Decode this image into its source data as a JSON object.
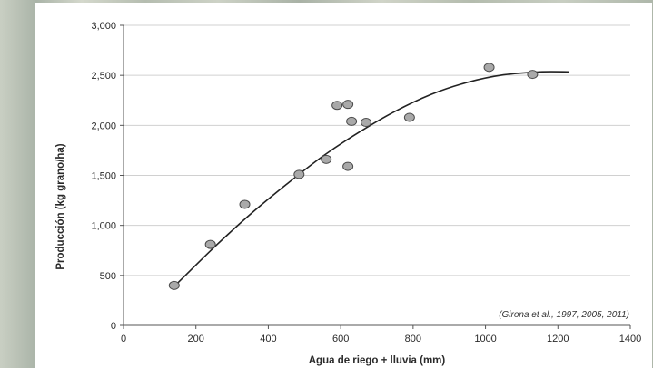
{
  "chart_data": {
    "type": "scatter",
    "title": "",
    "xlabel": "Agua de riego + lluvia (mm)",
    "ylabel": "Producción (kg grano/ha)",
    "xlim": [
      0,
      1400
    ],
    "ylim": [
      0,
      3000
    ],
    "x_ticks": [
      0,
      200,
      400,
      600,
      800,
      1000,
      1200,
      1400
    ],
    "x_tick_labels": [
      "0",
      "200",
      "400",
      "600",
      "800",
      "1000",
      "1200",
      "1400"
    ],
    "y_ticks": [
      0,
      500,
      1000,
      1500,
      2000,
      2500,
      3000
    ],
    "y_tick_labels": [
      "0",
      "500",
      "1,000",
      "1,500",
      "2,000",
      "2,500",
      "3,000"
    ],
    "grid": "horizontal",
    "annotation": "(Girona et al., 1997, 2005, 2011)",
    "series": [
      {
        "values": [
          {
            "x": 140,
            "y": 400
          },
          {
            "x": 240,
            "y": 810
          },
          {
            "x": 335,
            "y": 1210
          },
          {
            "x": 485,
            "y": 1510
          },
          {
            "x": 560,
            "y": 1660
          },
          {
            "x": 590,
            "y": 2200
          },
          {
            "x": 620,
            "y": 2210
          },
          {
            "x": 630,
            "y": 2040
          },
          {
            "x": 620,
            "y": 1590
          },
          {
            "x": 670,
            "y": 2030
          },
          {
            "x": 790,
            "y": 2080
          },
          {
            "x": 1010,
            "y": 2580
          },
          {
            "x": 1130,
            "y": 2510
          }
        ]
      }
    ],
    "trend_curve": {
      "type": "quadratic",
      "x_range": [
        140,
        1230
      ],
      "points": [
        {
          "x": 140,
          "y": 390
        },
        {
          "x": 250,
          "y": 780
        },
        {
          "x": 350,
          "y": 1110
        },
        {
          "x": 450,
          "y": 1410
        },
        {
          "x": 550,
          "y": 1690
        },
        {
          "x": 650,
          "y": 1930
        },
        {
          "x": 750,
          "y": 2140
        },
        {
          "x": 850,
          "y": 2310
        },
        {
          "x": 950,
          "y": 2430
        },
        {
          "x": 1050,
          "y": 2505
        },
        {
          "x": 1150,
          "y": 2535
        },
        {
          "x": 1230,
          "y": 2535
        }
      ]
    },
    "colors": {
      "point_fill": "#a9a9a9",
      "point_stroke": "#4a4a4a",
      "curve": "#222222",
      "grid": "#d0d0d0",
      "plot_background": "#ffffff"
    }
  }
}
